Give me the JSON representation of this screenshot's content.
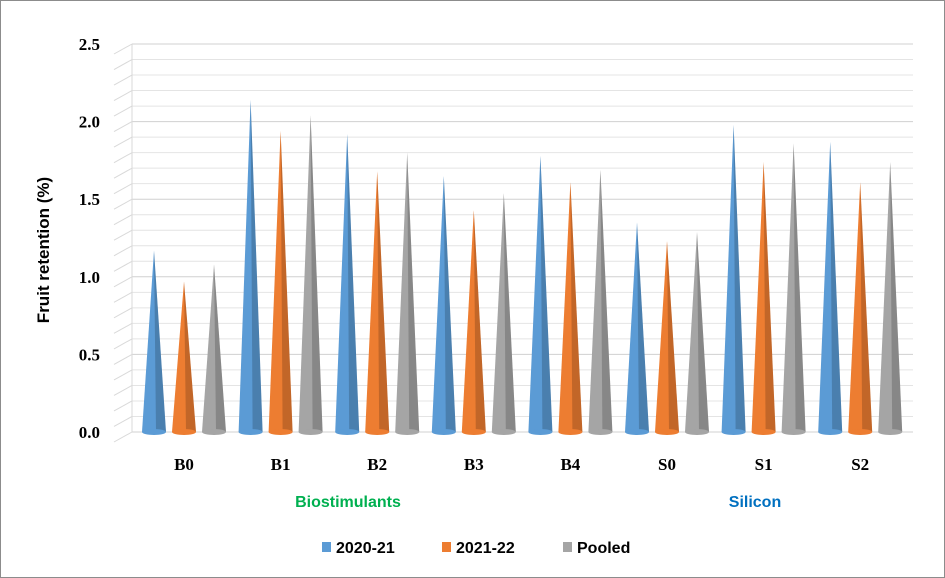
{
  "chart_data": {
    "type": "bar",
    "bar_shape": "cone",
    "categories": [
      "B0",
      "B1",
      "B2",
      "B3",
      "B4",
      "S0",
      "S1",
      "S2"
    ],
    "series": [
      {
        "name": "2020-21",
        "color": "#5b9bd5",
        "values": [
          1.17,
          2.14,
          1.92,
          1.65,
          1.78,
          1.35,
          1.98,
          1.87
        ]
      },
      {
        "name": "2021-22",
        "color": "#ed7d31",
        "values": [
          0.97,
          1.94,
          1.68,
          1.43,
          1.61,
          1.23,
          1.74,
          1.61
        ]
      },
      {
        "name": "Pooled",
        "color": "#a5a5a5",
        "values": [
          1.08,
          2.04,
          1.8,
          1.54,
          1.69,
          1.29,
          1.86,
          1.74
        ]
      }
    ],
    "ylabel": "Fruit retention (%)",
    "xlabel": "",
    "ylim": [
      0,
      2.5
    ],
    "yticks": [
      "0.0",
      "0.5",
      "1.0",
      "1.5",
      "2.0",
      "2.5"
    ],
    "grid": true,
    "legend_position": "bottom",
    "groups": [
      {
        "label": "Biostimulants",
        "color": "#00b050"
      },
      {
        "label": "Silicon",
        "color": "#0070c0"
      }
    ]
  }
}
